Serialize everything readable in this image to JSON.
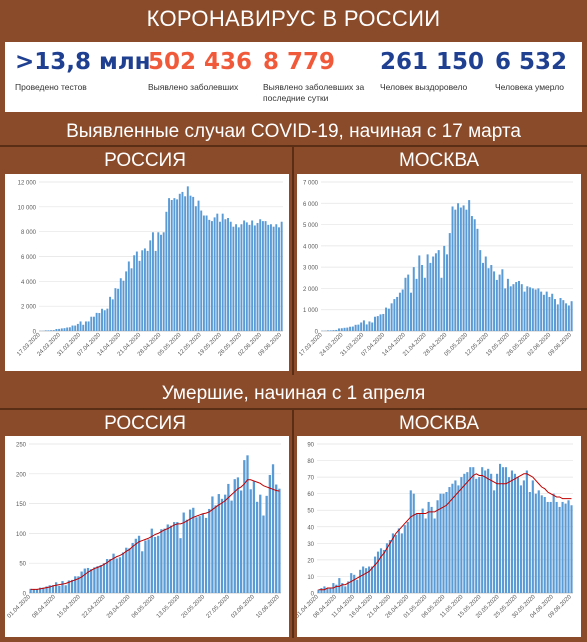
{
  "header": {
    "title": "КОРОНАВИРУС В РОССИИ"
  },
  "stats": [
    {
      "value": ">13,8 млн",
      "label": "Проведено тестов",
      "color": "#1f3f91"
    },
    {
      "value": "502 436",
      "label": "Выявлено заболевших",
      "color": "#f05a3a"
    },
    {
      "value": "8 779",
      "label": "Выявлено заболевших за последние сутки",
      "color": "#f05a3a"
    },
    {
      "value": "261 150",
      "label": "Человек выздоровело",
      "color": "#1f3f91"
    },
    {
      "value": "6 532",
      "label": "Человека умерло",
      "color": "#1f3f91"
    }
  ],
  "sections": {
    "cases_title": "Выявленные случаи COVID-19, начиная с 17 марта",
    "deaths_title": "Умершие, начиная с 1 апреля",
    "russia_label": "РОССИЯ",
    "moscow_label": "МОСКВА"
  },
  "chart_data": [
    {
      "id": "cases_russia",
      "type": "bar",
      "title": "",
      "ylim": [
        0,
        12000
      ],
      "yticks": [
        0,
        2000,
        4000,
        6000,
        8000,
        10000,
        12000
      ],
      "ytick_labels": [
        "0",
        "2 000",
        "4 000",
        "6 000",
        "8 000",
        "10 000",
        "12 000"
      ],
      "xtick_labels": [
        "17.03.2020",
        "24.03.2020",
        "31.03.2020",
        "07.04.2020",
        "14.04.2020",
        "21.04.2020",
        "28.04.2020",
        "05.05.2020",
        "12.05.2020",
        "19.05.2020",
        "26.05.2020",
        "02.06.2020",
        "09.06.2020"
      ],
      "bar_color": "#5b9bd5",
      "values": [
        10,
        10,
        50,
        50,
        60,
        70,
        160,
        170,
        210,
        230,
        280,
        300,
        440,
        440,
        570,
        770,
        500,
        770,
        770,
        1150,
        1150,
        1460,
        1450,
        1790,
        1670,
        1800,
        2750,
        2550,
        3450,
        3400,
        4250,
        4050,
        4800,
        5600,
        5050,
        6100,
        6400,
        5650,
        6500,
        6650,
        6450,
        7300,
        7950,
        6450,
        7950,
        7750,
        7950,
        9600,
        10700,
        10550,
        10700,
        10600,
        11050,
        11200,
        10850,
        11650,
        10900,
        10800,
        10050,
        10500,
        9700,
        9300,
        9300,
        8950,
        8850,
        9150,
        9450,
        8800,
        9450,
        9000,
        9100,
        8800,
        8400,
        8600,
        8350,
        8600,
        8900,
        8750,
        8550,
        8900,
        8500,
        8700,
        9000,
        8850,
        8850,
        8550,
        8600,
        8400,
        8600,
        8350,
        8800
      ]
    },
    {
      "id": "cases_moscow",
      "type": "bar",
      "title": "",
      "ylim": [
        0,
        7000
      ],
      "yticks": [
        0,
        1000,
        2000,
        3000,
        4000,
        5000,
        6000,
        7000
      ],
      "ytick_labels": [
        "0",
        "1 000",
        "2 000",
        "3 000",
        "4 000",
        "5 000",
        "6 000",
        "7 000"
      ],
      "xtick_labels": [
        "17.03.2020",
        "24.03.2020",
        "31.03.2020",
        "07.04.2020",
        "14.04.2020",
        "21.04.2020",
        "28.04.2020",
        "05.05.2020",
        "12.05.2020",
        "19.05.2020",
        "26.05.2020",
        "02.06.2020",
        "09.06.2020"
      ],
      "bar_color": "#5b9bd5",
      "values": [
        10,
        10,
        30,
        30,
        40,
        50,
        120,
        130,
        150,
        160,
        200,
        210,
        290,
        300,
        400,
        500,
        310,
        450,
        400,
        670,
        700,
        780,
        800,
        1100,
        1050,
        1300,
        1500,
        1600,
        1800,
        1950,
        2500,
        2650,
        1800,
        3000,
        2450,
        3550,
        3100,
        2500,
        3600,
        3200,
        3500,
        3650,
        3800,
        2500,
        4000,
        3600,
        4600,
        5850,
        5700,
        6000,
        5800,
        5900,
        5700,
        6150,
        5400,
        5250,
        4800,
        3800,
        3200,
        3500,
        2950,
        3100,
        2800,
        2400,
        2650,
        2900,
        2000,
        2450,
        2100,
        2200,
        2300,
        2350,
        2200,
        1850,
        2100,
        2050,
        2000,
        1950,
        2000,
        1850,
        1700,
        1850,
        1600,
        1750,
        1500,
        1250,
        1550,
        1450,
        1300,
        1200,
        1400
      ]
    },
    {
      "id": "deaths_russia",
      "type": "bar",
      "title": "",
      "ylim": [
        0,
        250
      ],
      "yticks": [
        0,
        50,
        100,
        150,
        200,
        250
      ],
      "ytick_labels": [
        "0",
        "50",
        "100",
        "150",
        "200",
        "250"
      ],
      "xtick_labels": [
        "01.04.2020",
        "08.04.2020",
        "15.04.2020",
        "22.04.2020",
        "29.04.2020",
        "06.05.2020",
        "13.05.2020",
        "20.05.2020",
        "27.05.2020",
        "03.06.2020",
        "10.06.2020"
      ],
      "bar_color": "#5b9bd5",
      "line_color": "#c00000",
      "values": [
        7,
        6,
        6,
        9,
        9,
        11,
        13,
        13,
        18,
        12,
        20,
        13,
        21,
        22,
        28,
        28,
        36,
        41,
        42,
        40,
        43,
        45,
        47,
        50,
        57,
        57,
        66,
        58,
        60,
        68,
        76,
        75,
        84,
        91,
        96,
        70,
        88,
        90,
        108,
        94,
        96,
        107,
        108,
        115,
        113,
        119,
        119,
        92,
        135,
        123,
        140,
        143,
        127,
        129,
        133,
        126,
        141,
        162,
        147,
        166,
        158,
        165,
        183,
        155,
        191,
        194,
        172,
        223,
        231,
        174,
        188,
        153,
        165,
        130,
        163,
        198,
        216,
        182,
        175
      ],
      "line_values": [
        6,
        6,
        6,
        7,
        8,
        9,
        10,
        12,
        13,
        14,
        15,
        16,
        18,
        20,
        22,
        24,
        27,
        31,
        35,
        38,
        41,
        43,
        45,
        48,
        51,
        55,
        58,
        61,
        63,
        66,
        70,
        73,
        78,
        82,
        86,
        88,
        90,
        92,
        95,
        98,
        100,
        103,
        106,
        108,
        111,
        114,
        116,
        116,
        118,
        121,
        124,
        127,
        129,
        131,
        133,
        134,
        136,
        140,
        144,
        148,
        151,
        155,
        160,
        165,
        170,
        175,
        178,
        183,
        190,
        190,
        188,
        186,
        184,
        180,
        178,
        176,
        174,
        172,
        171
      ]
    },
    {
      "id": "deaths_moscow",
      "type": "bar",
      "title": "",
      "ylim": [
        0,
        90
      ],
      "yticks": [
        0,
        10,
        20,
        30,
        40,
        50,
        60,
        70,
        80,
        90
      ],
      "ytick_labels": [
        "0",
        "10",
        "20",
        "30",
        "40",
        "50",
        "60",
        "70",
        "80",
        "90"
      ],
      "xtick_labels": [
        "01.04.2020",
        "06.04.2020",
        "11.04.2020",
        "16.04.2020",
        "21.04.2020",
        "26.04.2020",
        "01.05.2020",
        "06.05.2020",
        "11.05.2020",
        "15.05.2020",
        "20.05.2020",
        "25.05.2020",
        "30.05.2020",
        "04.06.2020",
        "09.06.2020"
      ],
      "bar_color": "#5b9bd5",
      "line_color": "#c00000",
      "values": [
        2,
        3,
        4,
        3,
        3,
        6,
        5,
        9,
        6,
        4,
        7,
        12,
        11,
        8,
        14,
        16,
        15,
        16,
        16,
        22,
        25,
        27,
        26,
        30,
        32,
        36,
        35,
        39,
        36,
        41,
        43,
        62,
        60,
        48,
        48,
        51,
        45,
        55,
        52,
        45,
        56,
        60,
        60,
        61,
        64,
        66,
        68,
        65,
        70,
        72,
        73,
        76,
        76,
        69,
        70,
        76,
        74,
        75,
        72,
        62,
        72,
        78,
        76,
        76,
        70,
        74,
        72,
        70,
        65,
        68,
        74,
        61,
        68,
        60,
        62,
        59,
        58,
        55,
        55,
        60,
        55,
        52,
        55,
        54,
        56,
        53
      ],
      "line_values": [
        2,
        2,
        2,
        3,
        3,
        3,
        4,
        4,
        5,
        5,
        6,
        7,
        8,
        9,
        10,
        11,
        12,
        13,
        15,
        17,
        19,
        22,
        24,
        27,
        30,
        33,
        36,
        38,
        40,
        42,
        44,
        46,
        47,
        48,
        48,
        48,
        48,
        49,
        49,
        49,
        50,
        51,
        52,
        53,
        55,
        57,
        59,
        61,
        63,
        65,
        67,
        69,
        71,
        72,
        71,
        71,
        70,
        69,
        68,
        67,
        66,
        66,
        66,
        66,
        67,
        68,
        69,
        70,
        71,
        72,
        72,
        71,
        70,
        68,
        66,
        64,
        63,
        61,
        60,
        59,
        58,
        58,
        57,
        57,
        57,
        57
      ]
    }
  ]
}
